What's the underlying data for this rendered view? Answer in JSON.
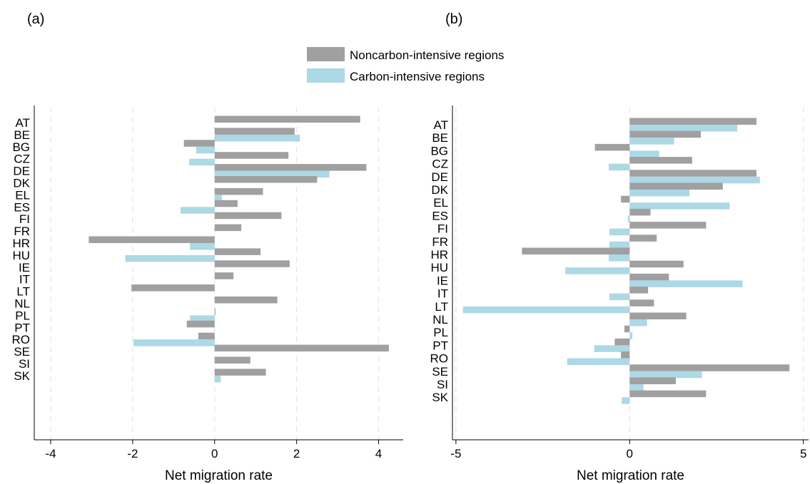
{
  "panels": [
    {
      "label": "(a)"
    },
    {
      "label": "(b)"
    }
  ],
  "legend": {
    "placement": "top-center",
    "items": [
      {
        "name": "Noncarbon-intensive regions",
        "color": "#a0a0a0"
      },
      {
        "name": "Carbon-intensive regions",
        "color": "#add8e6"
      }
    ]
  },
  "chart_data": [
    {
      "type": "bar",
      "orientation": "horizontal",
      "title": "",
      "xlabel": "Net migration rate",
      "ylabel": "",
      "xlim": [
        -4.4,
        4.6
      ],
      "xticks": [
        -4,
        -2,
        0,
        2,
        4
      ],
      "grid": "vertical dashed",
      "categories": [
        "AT",
        "BE",
        "BG",
        "CZ",
        "DE",
        "DK",
        "EL",
        "ES",
        "FI",
        "FR",
        "HR",
        "HU",
        "IE",
        "IT",
        "LT",
        "NL",
        "PL",
        "PT",
        "RO",
        "SE",
        "SI",
        "SK"
      ],
      "series": [
        {
          "name": "Noncarbon-intensive regions",
          "color": "#a0a0a0",
          "values": [
            3.55,
            1.95,
            -0.75,
            1.8,
            3.7,
            2.5,
            1.18,
            0.56,
            1.63,
            0.65,
            -3.07,
            1.12,
            1.83,
            0.46,
            -2.03,
            1.53,
            0.02,
            -0.68,
            -0.4,
            4.25,
            0.87,
            1.25
          ]
        },
        {
          "name": "Carbon-intensive regions",
          "color": "#add8e6",
          "values": [
            null,
            2.08,
            -0.45,
            -0.62,
            2.8,
            null,
            0.18,
            -0.83,
            null,
            null,
            -0.6,
            -2.18,
            null,
            null,
            null,
            null,
            -0.6,
            null,
            -1.98,
            null,
            null,
            0.15
          ]
        }
      ]
    },
    {
      "type": "bar",
      "orientation": "horizontal",
      "title": "",
      "xlabel": "Net migration rate",
      "ylabel": "",
      "xlim": [
        -5.1,
        5.15
      ],
      "xticks": [
        -5,
        0,
        5
      ],
      "grid": "vertical dashed",
      "categories": [
        "AT",
        "BE",
        "BG",
        "CZ",
        "DE",
        "DK",
        "EL",
        "ES",
        "FI",
        "FR",
        "HR",
        "HU",
        "IE",
        "IT",
        "LT",
        "NL",
        "PL",
        "PT",
        "RO",
        "SE",
        "SI",
        "SK"
      ],
      "series": [
        {
          "name": "Noncarbon-intensive regions",
          "color": "#a0a0a0",
          "values": [
            3.65,
            2.05,
            -1.0,
            1.8,
            3.65,
            2.68,
            -0.25,
            0.6,
            2.2,
            0.78,
            -3.1,
            1.55,
            1.13,
            0.53,
            0.7,
            1.63,
            -0.15,
            -0.43,
            -0.25,
            4.6,
            1.33,
            2.2
          ]
        },
        {
          "name": "Carbon-intensive regions",
          "color": "#add8e6",
          "values": [
            3.1,
            1.28,
            0.85,
            -0.6,
            3.75,
            1.72,
            2.88,
            -0.05,
            -0.58,
            -0.58,
            -0.6,
            -1.85,
            3.25,
            -0.58,
            -4.8,
            0.5,
            0.08,
            -1.02,
            -1.8,
            2.08,
            0.4,
            -0.23
          ]
        }
      ]
    }
  ]
}
